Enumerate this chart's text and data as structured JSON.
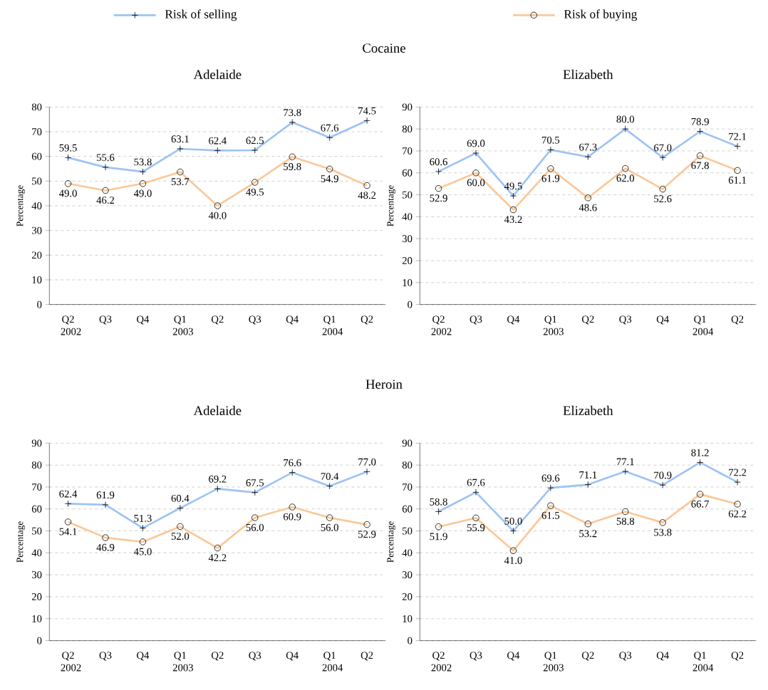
{
  "chart_data": [
    {
      "type": "line",
      "title": "Adelaide",
      "ylabel": "Percentage",
      "categories": [
        "Q2 2002",
        "Q3",
        "Q4",
        "Q1 2003",
        "Q2",
        "Q3",
        "Q4",
        "Q1 2004",
        "Q2"
      ],
      "ylim": [
        0,
        80
      ],
      "yticks": [
        0,
        10,
        20,
        30,
        40,
        50,
        60,
        70,
        80
      ],
      "grid": "y",
      "legend": "top",
      "annotations": [
        "Cocaine"
      ],
      "series": [
        {
          "name": "Risk of selling",
          "color": "#9dc3f5",
          "marker": "cross",
          "values": [
            59.5,
            55.6,
            53.8,
            63.1,
            62.4,
            62.5,
            73.8,
            67.6,
            74.5
          ],
          "value_labels": [
            "59.5",
            "55.6",
            "53.8",
            "63.1",
            "62.4",
            "62.5",
            "73.8",
            "67.6",
            "74.5"
          ]
        },
        {
          "name": "Risk of buying",
          "color": "#fac898",
          "marker": "circle",
          "values": [
            49.0,
            46.2,
            49.0,
            53.7,
            40.0,
            49.5,
            59.8,
            54.9,
            48.2
          ],
          "value_labels": [
            "49.0",
            "46.2",
            "49.0",
            "53.7",
            "40.0",
            "49.5",
            "59.8",
            "54.9",
            "48.2"
          ]
        }
      ]
    },
    {
      "type": "line",
      "title": "Elizabeth",
      "ylabel": "Percentage",
      "categories": [
        "Q2 2002",
        "Q3",
        "Q4",
        "Q1 2003",
        "Q2",
        "Q3",
        "Q4",
        "Q1 2004",
        "Q2"
      ],
      "ylim": [
        0,
        90
      ],
      "yticks": [
        0,
        10,
        20,
        30,
        40,
        50,
        60,
        70,
        80,
        90
      ],
      "grid": "y",
      "series": [
        {
          "color": "#9dc3f5",
          "marker": "cross",
          "values": [
            60.6,
            69.0,
            49.5,
            70.5,
            67.3,
            80.0,
            67.0,
            78.9,
            72.1
          ],
          "value_labels": [
            "60.6",
            "69.0",
            "49.5",
            "70.5",
            "67.3",
            "80.0",
            "67.0",
            "78.9",
            "72.1"
          ]
        },
        {
          "color": "#fac898",
          "marker": "circle",
          "values": [
            52.9,
            60.0,
            43.2,
            61.9,
            48.6,
            62.0,
            52.6,
            67.8,
            61.1
          ],
          "value_labels": [
            "52.9",
            "60.0",
            "43.2",
            "61.9",
            "48.6",
            "62.0",
            "52.6",
            "67.8",
            "61.1"
          ]
        }
      ]
    },
    {
      "type": "line",
      "title": "Adelaide",
      "ylabel": "Percentage",
      "categories": [
        "Q2 2002",
        "Q3",
        "Q4",
        "Q1 2003",
        "Q2",
        "Q3",
        "Q4",
        "Q1 2004",
        "Q2"
      ],
      "ylim": [
        0,
        90
      ],
      "yticks": [
        0,
        10,
        20,
        30,
        40,
        50,
        60,
        70,
        80,
        90
      ],
      "grid": "y",
      "annotations": [
        "Heroin"
      ],
      "series": [
        {
          "color": "#9dc3f5",
          "marker": "cross",
          "values": [
            62.4,
            61.9,
            51.3,
            60.4,
            69.2,
            67.5,
            76.6,
            70.4,
            77.0
          ],
          "value_labels": [
            "62.4",
            "61.9",
            "51.3",
            "60.4",
            "69.2",
            "67.5",
            "76.6",
            "70.4",
            "77.0"
          ]
        },
        {
          "color": "#fac898",
          "marker": "circle",
          "values": [
            54.1,
            46.9,
            45.0,
            52.0,
            42.2,
            56.0,
            60.9,
            56.0,
            52.9
          ],
          "value_labels": [
            "54.1",
            "46.9",
            "45.0",
            "52.0",
            "42.2",
            "56.0",
            "60.9",
            "56.0",
            "52.9"
          ]
        }
      ]
    },
    {
      "type": "line",
      "title": "Elizabeth",
      "ylabel": "Percentage",
      "categories": [
        "Q2 2002",
        "Q3",
        "Q4",
        "Q1 2003",
        "Q2",
        "Q3",
        "Q4",
        "Q1 2004",
        "Q2"
      ],
      "ylim": [
        0,
        90
      ],
      "yticks": [
        0,
        10,
        20,
        30,
        40,
        50,
        60,
        70,
        80,
        90
      ],
      "grid": "y",
      "series": [
        {
          "color": "#9dc3f5",
          "marker": "cross",
          "values": [
            58.8,
            67.6,
            50.0,
            69.6,
            71.1,
            77.1,
            70.9,
            81.2,
            72.2
          ],
          "value_labels": [
            "58.8",
            "67.6",
            "50.0",
            "69.6",
            "71.1",
            "77.1",
            "70.9",
            "81.2",
            "72.2"
          ]
        },
        {
          "color": "#fac898",
          "marker": "circle",
          "values": [
            51.9,
            55.9,
            41.0,
            61.5,
            53.2,
            58.8,
            53.8,
            66.7,
            62.2
          ],
          "value_labels": [
            "51.9",
            "55.9",
            "41.0",
            "61.5",
            "53.2",
            "58.8",
            "53.8",
            "66.7",
            "62.2"
          ]
        }
      ]
    }
  ]
}
